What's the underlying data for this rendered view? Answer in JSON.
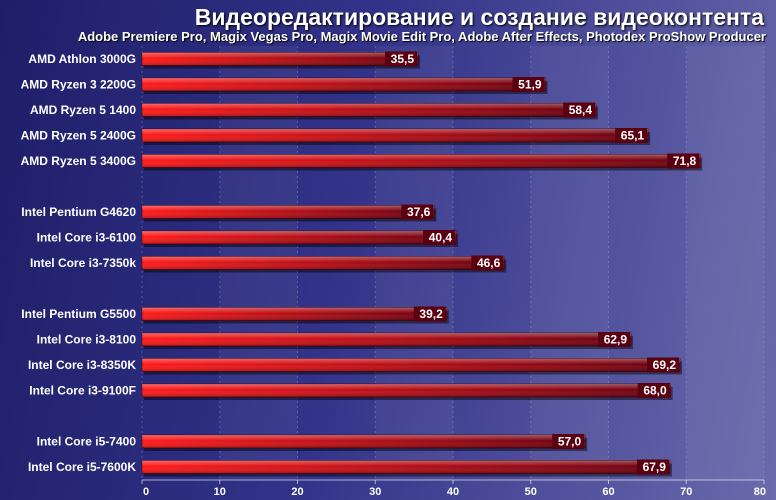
{
  "chart_data": {
    "type": "bar",
    "orientation": "horizontal",
    "title": "Видеоредактирование и создание видеоконтента",
    "subtitle": "Adobe Premiere Pro, Magix Vegas Pro, Magix Movie Edit Pro, Adobe After Effects, Photodex ProShow Producer",
    "xlim": [
      0,
      80
    ],
    "ticks": [
      "0",
      "10",
      "20",
      "30",
      "40",
      "50",
      "60",
      "70",
      "80"
    ],
    "grid": true,
    "groups": [
      {
        "categories": [
          "AMD Athlon 3000G",
          "AMD Ryzen 3 2200G",
          "AMD Ryzen 5 1400",
          "AMD Ryzen 5 2400G",
          "AMD Ryzen 5 3400G"
        ],
        "values": [
          35.5,
          51.9,
          58.4,
          65.1,
          71.8
        ],
        "labels": [
          "35,5",
          "51,9",
          "58,4",
          "65,1",
          "71,8"
        ]
      },
      {
        "categories": [
          "Intel Pentium G4620",
          "Intel Core i3-6100",
          "Intel Core i3-7350k"
        ],
        "values": [
          37.6,
          40.4,
          46.6
        ],
        "labels": [
          "37,6",
          "40,4",
          "46,6"
        ]
      },
      {
        "categories": [
          "Intel Pentium G5500",
          "Intel Core i3-8100",
          "Intel Core i3-8350K",
          "Intel Core i3-9100F"
        ],
        "values": [
          39.2,
          62.9,
          69.2,
          68.0
        ],
        "labels": [
          "39,2",
          "62,9",
          "69,2",
          "68,0"
        ]
      },
      {
        "categories": [
          "Intel Core i5-7400",
          "Intel Core i5-7600K"
        ],
        "values": [
          57.0,
          67.9
        ],
        "labels": [
          "57,0",
          "67,9"
        ]
      }
    ],
    "colors": {
      "bar_start": "#ff1a1a",
      "bar_end": "#6a0010",
      "label_bg": "#5a0010",
      "gridline": "#aab0e0"
    }
  }
}
